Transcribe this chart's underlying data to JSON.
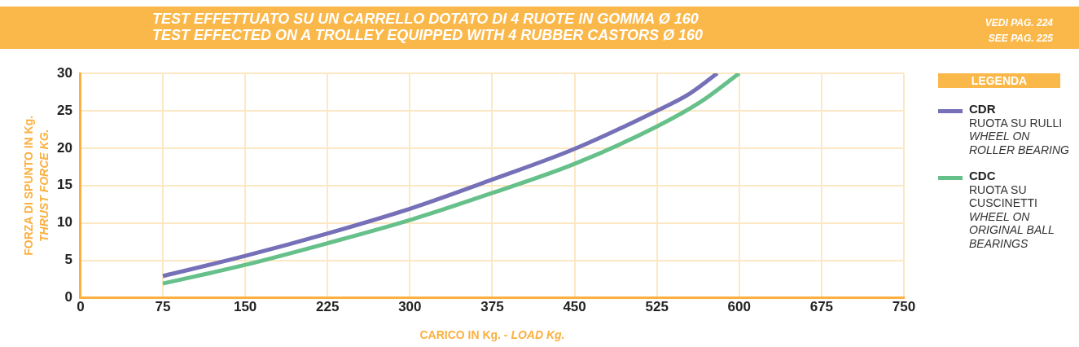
{
  "chart_data": {
    "type": "line",
    "title": "TEST EFFETTUATO SU UN CARRELLO DOTATO DI 4 RUOTE IN GOMMA Ø 160",
    "subtitle": "TEST EFFECTED ON A TROLLEY EQUIPPED WITH 4 RUBBER CASTORS Ø 160",
    "annotations": [
      "VEDI PAG. 224",
      "SEE PAG. 225"
    ],
    "xlabel": "CARICO IN Kg. - LOAD Kg.",
    "ylabel": "FORZA DI SPUNTO IN Kg.\nTHRUST FORCE KG.",
    "legend_title": "LEGENDA",
    "series": [
      {
        "name": "CDR\nRUOTA SU RULLI\nWHEEL ON ROLLER BEARING",
        "color": "#7570b8",
        "x": [
          75,
          150,
          225,
          300,
          375,
          450,
          525,
          555,
          580
        ],
        "values": [
          2.9,
          5.6,
          8.6,
          11.9,
          15.8,
          19.9,
          25,
          27.3,
          30
        ]
      },
      {
        "name": "CDC\nRUOTA SU CUSCINETTI\nWHEEL ON ORIGINAL BALL BEARINGS",
        "color": "#66c08a",
        "x": [
          75,
          150,
          225,
          300,
          375,
          450,
          525,
          565,
          600
        ],
        "values": [
          1.9,
          4.4,
          7.3,
          10.4,
          14.0,
          17.9,
          22.9,
          26.2,
          30
        ]
      }
    ],
    "xlim": [
      0,
      750
    ],
    "xticks": [
      0,
      75,
      150,
      225,
      300,
      375,
      450,
      525,
      600,
      675,
      750
    ],
    "ylim": [
      0,
      30
    ],
    "yticks": [
      0,
      5,
      10,
      15,
      20,
      25,
      30
    ],
    "grid": true,
    "legend": "right",
    "marker": "none",
    "line_style": "solid"
  }
}
